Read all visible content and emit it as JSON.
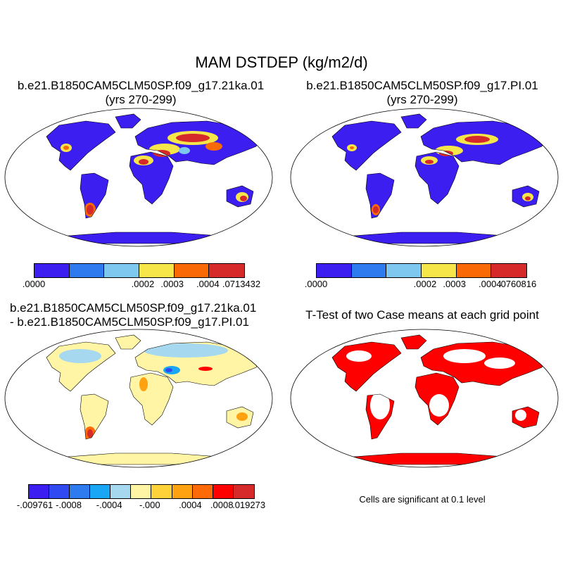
{
  "title": "MAM DSTDEP (kg/m2/d)",
  "colors": {
    "seq": [
      "#3c1ff0",
      "#2d7bef",
      "#7ec7ef",
      "#f7e64a",
      "#f96a07",
      "#d62a2a"
    ],
    "div": [
      "#3c1ff0",
      "#3049f0",
      "#2d7bef",
      "#19a6f5",
      "#a6d8f0",
      "#fff5a5",
      "#ffd23a",
      "#ffa212",
      "#ff6a08",
      "#ff0000",
      "#d62a2a"
    ],
    "ttest": "#ff0000",
    "ocean": "#ffffff"
  },
  "panels": [
    {
      "title_line1": "b.e21.B1850CAM5CLM50SP.f09_g17.21ka.01",
      "title_line2": "(yrs 270-299)",
      "colorbar_labels": [
        ".0000",
        ".0002",
        ".0003",
        ".0004",
        ".0713432"
      ]
    },
    {
      "title_line1": "b.e21.B1850CAM5CLM50SP.f09_g17.PI.01",
      "title_line2": "(yrs 270-299)",
      "colorbar_labels": [
        ".0000",
        ".0002",
        ".0003",
        ".0004",
        ".0760816"
      ]
    },
    {
      "title_line1": "b.e21.B1850CAM5CLM50SP.f09_g17.21ka.01",
      "title_line2": "- b.e21.B1850CAM5CLM50SP.f09_g17.PI.01",
      "colorbar_labels": [
        "-.009761",
        "-.0008",
        "-.0004",
        "-.000",
        ".0004",
        ".0008",
        ".019273"
      ]
    },
    {
      "title_line1": "T-Test of two Case means at each grid point",
      "note": "Cells are significant at 0.1 level"
    }
  ]
}
